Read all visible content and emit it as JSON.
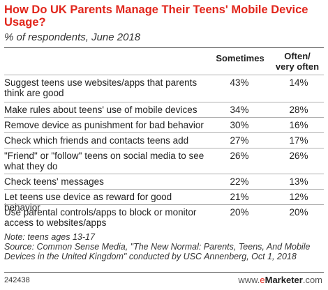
{
  "header": {
    "title": "How Do UK Parents Manage Their Teens' Mobile Device Usage?",
    "subtitle": "% of respondents, June 2018"
  },
  "chart_data": {
    "type": "table",
    "title": "How Do UK Parents Manage Their Teens' Mobile Device Usage?",
    "subtitle": "% of respondents, June 2018",
    "columns": [
      "Sometimes",
      "Often/ very often"
    ],
    "rows": [
      {
        "label": "Suggest teens use websites/apps that parents think are good",
        "values": [
          "43%",
          "14%"
        ]
      },
      {
        "label": "Make rules about teens' use of mobile devices",
        "values": [
          "34%",
          "28%"
        ]
      },
      {
        "label": "Remove device as punishment for bad behavior",
        "values": [
          "30%",
          "16%"
        ]
      },
      {
        "label": "Check which friends and contacts teens add",
        "values": [
          "27%",
          "17%"
        ]
      },
      {
        "label": "\"Friend\" or \"follow\" teens on social media to see what they do",
        "values": [
          "26%",
          "26%"
        ]
      },
      {
        "label": "Check teens' messages",
        "values": [
          "22%",
          "13%"
        ]
      },
      {
        "label": "Let teens use device as reward for good behavior",
        "values": [
          "21%",
          "12%"
        ]
      },
      {
        "label": "Use parental controls/apps to block or monitor access to websites/apps",
        "values": [
          "20%",
          "20%"
        ]
      }
    ]
  },
  "footer": {
    "note": "Note: teens ages 13-17",
    "source": "Source: Common Sense Media, \"The New Normal: Parents, Teens, And Mobile Devices in the United Kingdom\" conducted by USC Annenberg, Oct 1, 2018",
    "chart_id": "242438",
    "brand_prefix": "www.",
    "brand_mark": "e",
    "brand_name": "Marketer",
    "brand_suffix": ".com"
  },
  "colors": {
    "title": "#e1251b",
    "text": "#222222",
    "rule": "#b0b0b0"
  }
}
